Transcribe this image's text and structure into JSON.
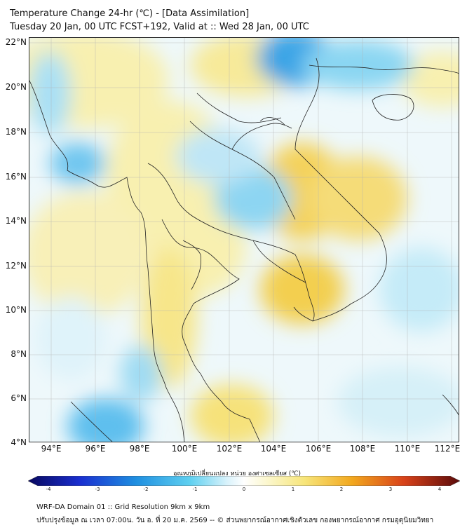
{
  "header": {
    "line1": "Temperature Change 24-hr (℃) - [Data Assimilation]",
    "line2": "Tuesday 20 Jan, 00 UTC FCST+192, Valid at :: Wed 28 Jan, 00 UTC"
  },
  "axes": {
    "lat_labels": [
      "22°N",
      "20°N",
      "18°N",
      "16°N",
      "14°N",
      "12°N",
      "10°N",
      "8°N",
      "6°N",
      "4°N"
    ],
    "lon_labels": [
      "94°E",
      "96°E",
      "98°E",
      "100°E",
      "102°E",
      "104°E",
      "106°E",
      "108°E",
      "110°E",
      "112°E"
    ]
  },
  "colorbar": {
    "title": "อุณหภูมิเปลี่ยนแปลง หน่วย องศาเซลเซียส (℃)",
    "ticks": [
      "-4",
      "-3",
      "-2",
      "-1",
      "0",
      "1",
      "2",
      "3",
      "4"
    ],
    "range": [
      -4,
      4
    ]
  },
  "footer": {
    "line1": "WRF-DA Domain 01 :: Grid Resolution 9km x 9km",
    "line2": "ปรับปรุงข้อมูล ณ เวลา 07:00น. วัน อ. ที่ 20 ม.ค. 2569 -- © ส่วนพยากรณ์อากาศเชิงตัวเลข กองพยากรณ์อากาศ กรมอุตุนิยมวิทยา"
  },
  "colors": {
    "cold_strong": "#1f8fe0",
    "cold": "#7fd0f2",
    "neutral": "#f7fbfd",
    "warm": "#f7ea8e",
    "warm_strong": "#f2c53a",
    "land_border": "#222222"
  }
}
